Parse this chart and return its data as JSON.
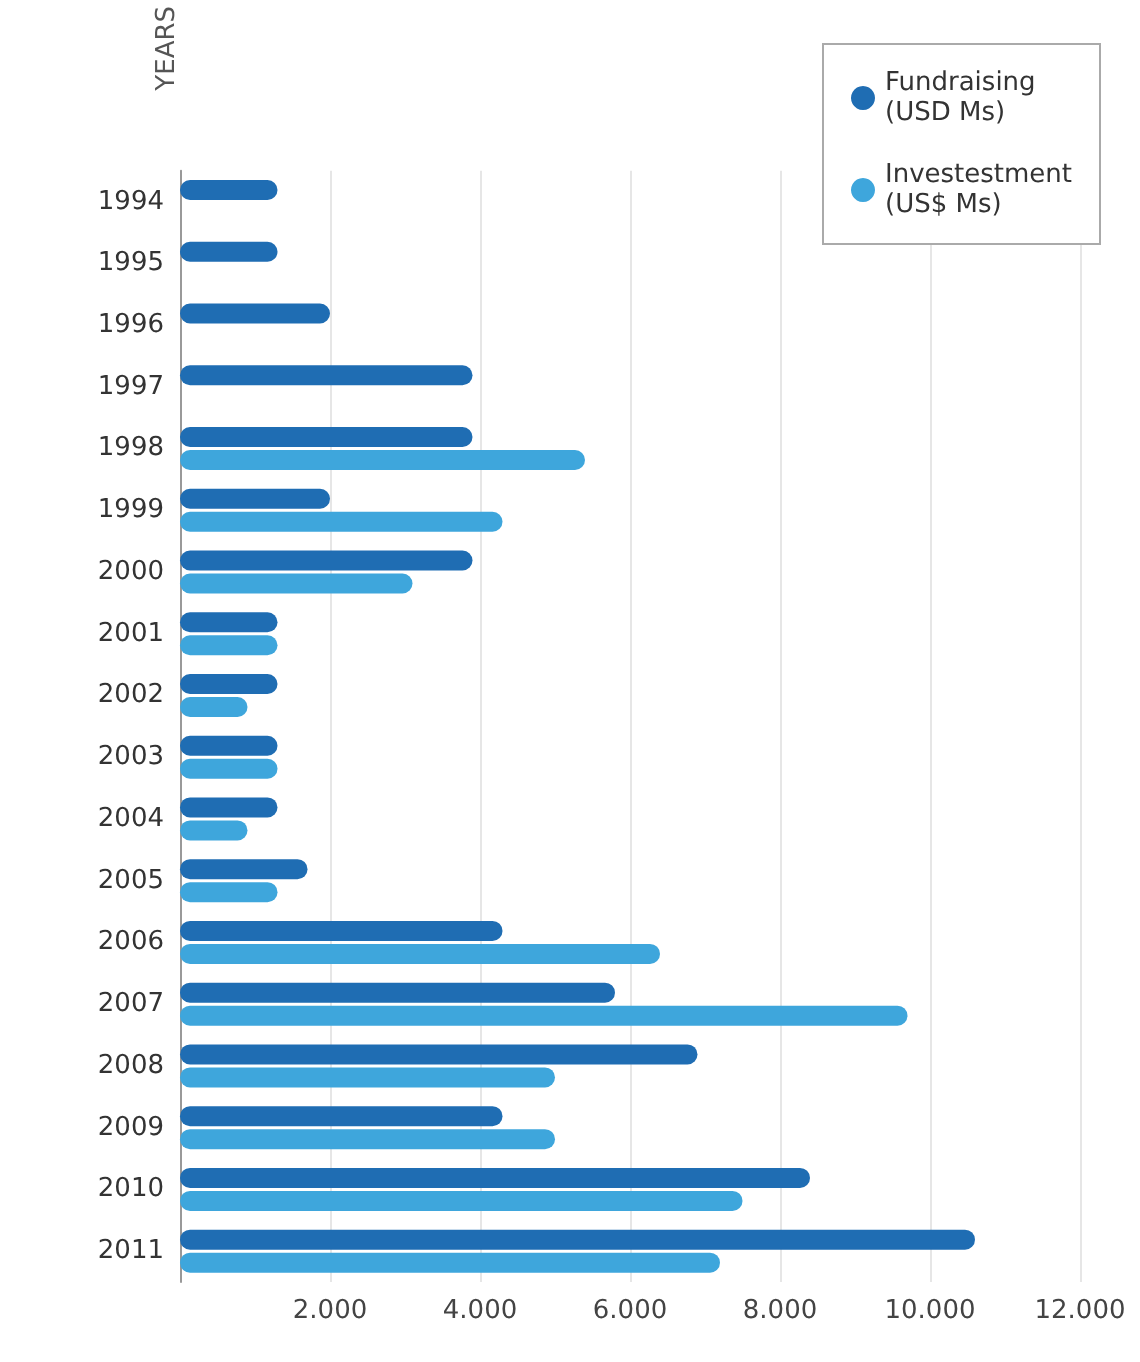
{
  "chart_data": {
    "type": "bar",
    "orientation": "horizontal",
    "ylabel": "YEARS",
    "categories": [
      "1994",
      "1995",
      "1996",
      "1997",
      "1998",
      "1999",
      "2000",
      "2001",
      "2002",
      "2003",
      "2004",
      "2005",
      "2006",
      "2007",
      "2008",
      "2009",
      "2010",
      "2011"
    ],
    "series": [
      {
        "name": "Fundraising (USD Ms)",
        "color": "#1f6db3",
        "values": [
          1300,
          1300,
          2000,
          3900,
          3900,
          2000,
          3900,
          1300,
          1300,
          1300,
          1300,
          1700,
          4300,
          5800,
          6900,
          4300,
          8400,
          10600
        ]
      },
      {
        "name": "Investestment (US$ Ms)",
        "color": "#3ea6dc",
        "values": [
          null,
          null,
          null,
          null,
          5400,
          4300,
          3100,
          1300,
          900,
          1300,
          900,
          1300,
          6400,
          9700,
          5000,
          5000,
          7500,
          7200
        ]
      }
    ],
    "xlim": [
      0,
      12000
    ],
    "xticks": [
      {
        "value": 2000,
        "label": "2.000"
      },
      {
        "value": 4000,
        "label": "4.000"
      },
      {
        "value": 6000,
        "label": "6.000"
      },
      {
        "value": 8000,
        "label": "8.000"
      },
      {
        "value": 10000,
        "label": "10.000"
      },
      {
        "value": 12000,
        "label": "12.000"
      }
    ],
    "grid": "x",
    "legend": "top right"
  }
}
